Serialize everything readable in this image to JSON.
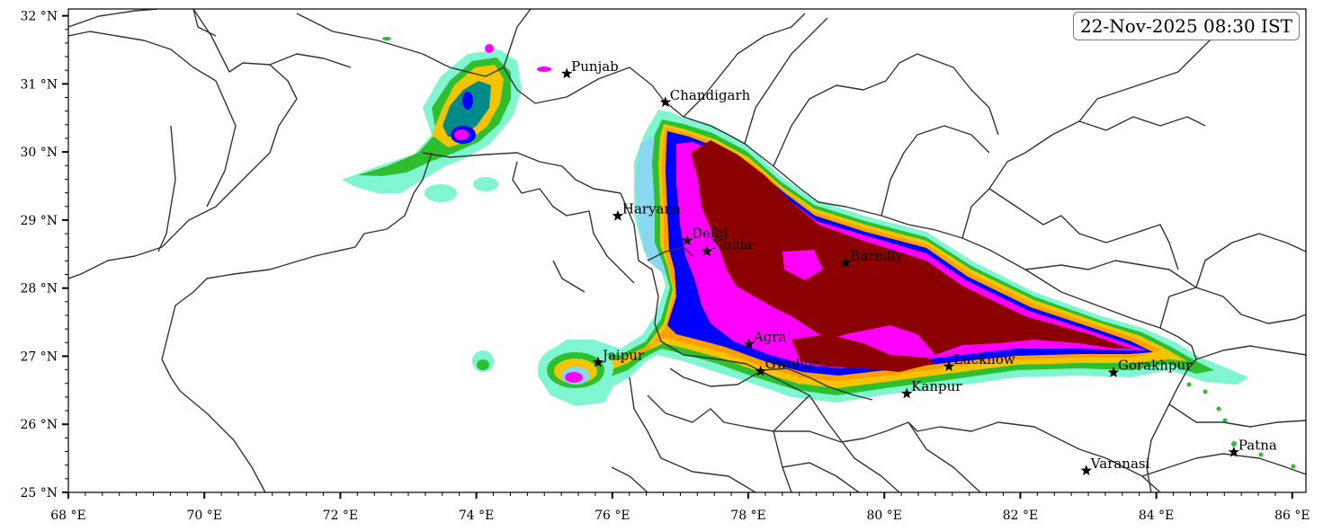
{
  "timestamp": "22-Nov-2025 08:30 IST",
  "axes": {
    "lon_ticks": [
      {
        "value": 68,
        "label": "68 °E"
      },
      {
        "value": 70,
        "label": "70 °E"
      },
      {
        "value": 72,
        "label": "72 °E"
      },
      {
        "value": 74,
        "label": "74 °E"
      },
      {
        "value": 76,
        "label": "76 °E"
      },
      {
        "value": 78,
        "label": "78 °E"
      },
      {
        "value": 80,
        "label": "80 °E"
      },
      {
        "value": 82,
        "label": "82 °E"
      },
      {
        "value": 84,
        "label": "84 °E"
      },
      {
        "value": 86,
        "label": "86 °E"
      }
    ],
    "lat_ticks": [
      {
        "value": 32,
        "label": "32 °N"
      },
      {
        "value": 31,
        "label": "31 °N"
      },
      {
        "value": 30,
        "label": "30 °N"
      },
      {
        "value": 29,
        "label": "29 °N"
      },
      {
        "value": 28,
        "label": "28 °N"
      },
      {
        "value": 27,
        "label": "27 °N"
      },
      {
        "value": 26,
        "label": "26 °N"
      },
      {
        "value": 25,
        "label": "25 °N"
      }
    ],
    "lon_range": [
      68,
      86.2
    ],
    "lat_range": [
      25,
      32.1
    ]
  },
  "cities": [
    {
      "name": "Punjab",
      "lon": 75.33,
      "lat": 31.15
    },
    {
      "name": "Chandigarh",
      "lon": 76.78,
      "lat": 30.73
    },
    {
      "name": "Haryana",
      "lon": 76.08,
      "lat": 29.06
    },
    {
      "name": "Delhi",
      "lon": 77.1,
      "lat": 28.7
    },
    {
      "name": "Noida",
      "lon": 77.39,
      "lat": 28.54
    },
    {
      "name": "Bareilly",
      "lon": 79.43,
      "lat": 28.37
    },
    {
      "name": "Agra",
      "lon": 78.01,
      "lat": 27.18
    },
    {
      "name": "Jaipur",
      "lon": 75.79,
      "lat": 26.91
    },
    {
      "name": "Gwalior",
      "lon": 78.18,
      "lat": 26.78
    },
    {
      "name": "Lucknow",
      "lon": 80.95,
      "lat": 26.85
    },
    {
      "name": "Kanpur",
      "lon": 80.33,
      "lat": 26.45
    },
    {
      "name": "Gorakhpur",
      "lon": 83.37,
      "lat": 26.76
    },
    {
      "name": "Varanasi",
      "lon": 82.97,
      "lat": 25.32
    },
    {
      "name": "Patna",
      "lon": 85.14,
      "lat": 25.59
    }
  ],
  "colors": {
    "level1": "#7ff5d2",
    "level2": "#8ad7f0",
    "level3": "#2dbf2d",
    "level4": "#f4c400",
    "level5": "#ff9e00",
    "level6": "#008b8b",
    "level7": "#0000ff",
    "level8": "#ff00ff",
    "level9": "#8b0000",
    "border": "#333333"
  }
}
